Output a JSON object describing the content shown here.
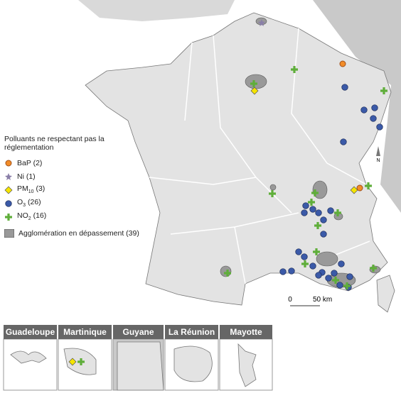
{
  "legend": {
    "title": "Polluants ne respectant pas la réglementation",
    "items": [
      {
        "label": "BaP (2)"
      },
      {
        "label": "Ni (1)"
      },
      {
        "label": "PM",
        "sub": "10",
        "rest": "(3)"
      },
      {
        "label": "O",
        "sub": "3",
        "rest": "(26)"
      },
      {
        "label": "NO",
        "sub": "2",
        "rest": "(16)"
      }
    ],
    "area": "Agglomération en dépassement (39)"
  },
  "scale": {
    "start": "0",
    "end": "50 km"
  },
  "north": "N",
  "insets": [
    "Guadeloupe",
    "Martinique",
    "Guyane",
    "La Réunion",
    "Mayotte"
  ]
}
